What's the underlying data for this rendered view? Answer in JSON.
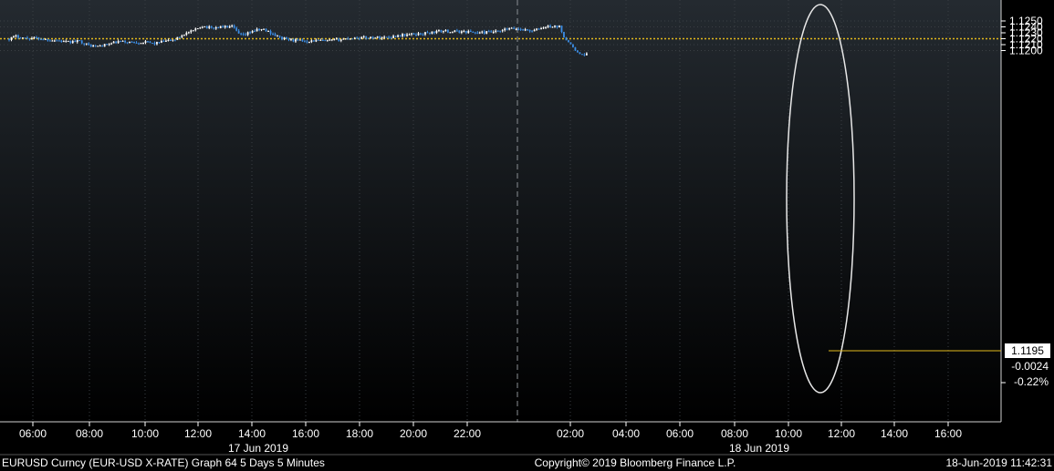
{
  "footer": {
    "left": "EURUSD Curncy (EUR-USD X-RATE) Graph 64 5 Days 5 Minutes",
    "center": "Copyright© 2019 Bloomberg Finance L.P.",
    "right": "18-Jun-2019 11:42:31"
  },
  "colors": {
    "background_top": "#242a30",
    "background_bottom": "#000000",
    "candle_up": "#ffffff",
    "candle_down": "#3c8ee6",
    "ref_line": "#e3b81c",
    "last_line": "#e3b81c",
    "grid": "#3a3f44",
    "ellipse": "#e8e8e8"
  },
  "chart_data": {
    "type": "candlestick",
    "symbol": "EURUSD",
    "interval": "5 Minutes",
    "ylim": [
      1.1187,
      1.1256
    ],
    "yticks": [
      "1.1250",
      "1.1240",
      "1.1230",
      "1.1220",
      "1.1210",
      "1.1200"
    ],
    "x_tick_labels_day1": [
      "06:00",
      "08:00",
      "10:00",
      "12:00",
      "14:00",
      "16:00",
      "18:00",
      "20:00",
      "22:00"
    ],
    "x_tick_labels_day2": [
      "02:00",
      "04:00",
      "06:00",
      "08:00",
      "10:00",
      "12:00",
      "14:00",
      "16:00"
    ],
    "date_labels": [
      "17 Jun 2019",
      "18 Jun 2019"
    ],
    "reference_level": 1.122,
    "last": {
      "price": "1.1195",
      "change": "-0.0024",
      "pct": "-0.22%",
      "value": 1.1195
    },
    "annotation": "ellipse highlighting drop",
    "grid": true,
    "keypoints": [
      [
        0,
        1.122
      ],
      [
        0.25,
        1.1224
      ],
      [
        0.6,
        1.1221
      ],
      [
        1.0,
        1.1221
      ],
      [
        1.3,
        1.1219
      ],
      [
        1.8,
        1.1217
      ],
      [
        2.1,
        1.1214
      ],
      [
        2.6,
        1.1216
      ],
      [
        2.9,
        1.1209
      ],
      [
        3.2,
        1.1207
      ],
      [
        3.6,
        1.121
      ],
      [
        4.0,
        1.1215
      ],
      [
        4.5,
        1.1214
      ],
      [
        5.0,
        1.1214
      ],
      [
        5.3,
        1.1212
      ],
      [
        5.8,
        1.1216
      ],
      [
        6.1,
        1.1219
      ],
      [
        6.4,
        1.1228
      ],
      [
        6.8,
        1.1234
      ],
      [
        7.05,
        1.1242
      ],
      [
        7.4,
        1.1238
      ],
      [
        7.8,
        1.124
      ],
      [
        8.2,
        1.124
      ],
      [
        8.4,
        1.1228
      ],
      [
        8.6,
        1.1225
      ],
      [
        8.9,
        1.1233
      ],
      [
        9.3,
        1.1236
      ],
      [
        9.6,
        1.123
      ],
      [
        9.9,
        1.1222
      ],
      [
        10.2,
        1.1219
      ],
      [
        10.5,
        1.1217
      ],
      [
        10.9,
        1.1216
      ],
      [
        11.3,
        1.1217
      ],
      [
        11.6,
        1.1216
      ],
      [
        12.0,
        1.1218
      ],
      [
        12.5,
        1.1221
      ],
      [
        13.0,
        1.1222
      ],
      [
        13.5,
        1.1222
      ],
      [
        14.0,
        1.1223
      ],
      [
        14.3,
        1.1226
      ],
      [
        14.7,
        1.1227
      ],
      [
        15.0,
        1.1228
      ],
      [
        15.4,
        1.123
      ],
      [
        15.8,
        1.1233
      ],
      [
        16.3,
        1.1232
      ],
      [
        16.8,
        1.1232
      ],
      [
        17.2,
        1.123
      ],
      [
        17.6,
        1.1231
      ],
      [
        18.0,
        1.1232
      ],
      [
        18.2,
        1.1236
      ],
      [
        18.6,
        1.1237
      ],
      [
        18.9,
        1.1235
      ],
      [
        19.2,
        1.1233
      ],
      [
        19.5,
        1.1238
      ],
      [
        19.8,
        1.1241
      ],
      [
        20.2,
        1.124
      ],
      [
        20.35,
        1.122
      ],
      [
        20.6,
        1.121
      ],
      [
        20.75,
        1.12
      ],
      [
        20.95,
        1.1193
      ],
      [
        21.2,
        1.1195
      ]
    ]
  }
}
